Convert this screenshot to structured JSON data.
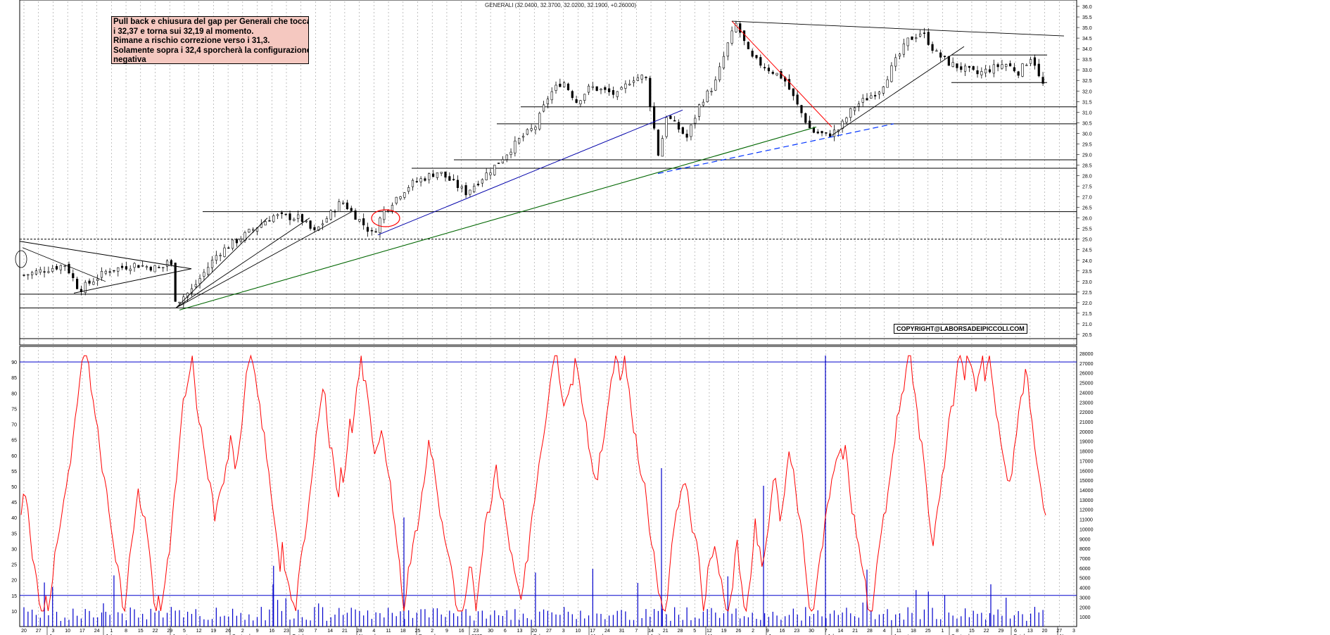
{
  "header_text": "GENERALI (32.0400, 32.3700, 32.0200, 32.1900, +0.26000)",
  "note_lines": [
    "Pull back e chiusura del gap per Generali che tocca",
    "i 32,37 e torna sui 32,19 al momento.",
    "Rimane a rischio correzione verso i 31,3.",
    "Solamente sopra i 32,4 sporcherà la configurazione",
    "negativa"
  ],
  "copyright": "COPYRIGHT@LABORSADEIPICCOLI.COM",
  "colors": {
    "candle": "#000000",
    "rsi": "#ff0000",
    "volume": "#0000cc",
    "blue_line": "#0000aa",
    "green_line": "#006600",
    "red_line": "#ff0000",
    "dashed_blue": "#0033ff"
  },
  "chart_data": [
    {
      "type": "candlestick",
      "title": "GENERALI (32.0400, 32.3700, 32.0200, 32.1900, +0.26000)",
      "ylim": [
        20.0,
        36.3
      ],
      "y_ticks": [
        "20.5",
        "21.0",
        "21.5",
        "22.0",
        "22.5",
        "23.0",
        "23.5",
        "24.0",
        "24.5",
        "25.0",
        "25.5",
        "26.0",
        "26.5",
        "27.0",
        "27.5",
        "28.0",
        "28.5",
        "29.0",
        "29.5",
        "30.0",
        "30.5",
        "31.0",
        "31.5",
        "32.0",
        "32.5",
        "33.0",
        "33.5",
        "34.0",
        "34.5",
        "35.0",
        "35.5",
        "36.0"
      ],
      "last": {
        "open": 32.04,
        "high": 32.37,
        "low": 32.02,
        "close": 32.19,
        "change": 0.26
      },
      "horizontal_levels": [
        33.7,
        32.4,
        31.25,
        30.45,
        28.75,
        28.35,
        26.3,
        25.0,
        22.4,
        21.75,
        20.3
      ],
      "price_path": [
        [
          "2024-05-20",
          23.3
        ],
        [
          "2024-06-10",
          23.8
        ],
        [
          "2024-06-17",
          22.6
        ],
        [
          "2024-07-01",
          23.5
        ],
        [
          "2024-07-15",
          23.8
        ],
        [
          "2024-07-29",
          23.6
        ],
        [
          "2024-08-02",
          24.2
        ],
        [
          "2024-08-05",
          22.0
        ],
        [
          "2024-08-13",
          22.6
        ],
        [
          "2024-08-26",
          24.3
        ],
        [
          "2024-09-09",
          25.2
        ],
        [
          "2024-09-23",
          26.1
        ],
        [
          "2024-10-07",
          26.0
        ],
        [
          "2024-10-14",
          25.3
        ],
        [
          "2024-10-28",
          26.8
        ],
        [
          "2024-11-04",
          26.1
        ],
        [
          "2024-11-13",
          25.2
        ],
        [
          "2024-11-18",
          26.3
        ],
        [
          "2024-11-25",
          27.0
        ],
        [
          "2024-12-02",
          27.6
        ],
        [
          "2024-12-16",
          28.2
        ],
        [
          "2024-12-30",
          27.2
        ],
        [
          "2025-01-13",
          28.4
        ],
        [
          "2025-01-27",
          29.8
        ],
        [
          "2025-02-03",
          30.3
        ],
        [
          "2025-02-10",
          31.8
        ],
        [
          "2025-02-17",
          32.5
        ],
        [
          "2025-02-24",
          31.5
        ],
        [
          "2025-03-03",
          32.2
        ],
        [
          "2025-03-17",
          31.8
        ],
        [
          "2025-03-24",
          32.6
        ],
        [
          "2025-03-31",
          32.7
        ],
        [
          "2025-04-07",
          28.7
        ],
        [
          "2025-04-10",
          30.9
        ],
        [
          "2025-04-21",
          29.8
        ],
        [
          "2025-04-28",
          31.5
        ],
        [
          "2025-05-05",
          32.3
        ],
        [
          "2025-05-12",
          34.3
        ],
        [
          "2025-05-16",
          35.2
        ],
        [
          "2025-05-23",
          33.6
        ],
        [
          "2025-06-02",
          33.0
        ],
        [
          "2025-06-09",
          32.6
        ],
        [
          "2025-06-16",
          31.3
        ],
        [
          "2025-06-23",
          30.1
        ],
        [
          "2025-07-01",
          29.9
        ],
        [
          "2025-07-07",
          30.2
        ],
        [
          "2025-07-14",
          31.2
        ],
        [
          "2025-07-28",
          32.1
        ],
        [
          "2025-08-04",
          33.3
        ],
        [
          "2025-08-11",
          34.4
        ],
        [
          "2025-08-18",
          34.8
        ],
        [
          "2025-08-25",
          33.8
        ],
        [
          "2025-09-01",
          33.3
        ],
        [
          "2025-09-15",
          32.8
        ],
        [
          "2025-09-29",
          33.3
        ],
        [
          "2025-10-06",
          32.9
        ],
        [
          "2025-10-13",
          33.7
        ],
        [
          "2025-10-17",
          32.4
        ],
        [
          "2025-10-20",
          32.19
        ]
      ]
    },
    {
      "type": "line",
      "name": "oscillator",
      "ylim": [
        5,
        95
      ],
      "y_ticks": [
        "10",
        "15",
        "20",
        "25",
        "30",
        "35",
        "40",
        "45",
        "50",
        "55",
        "60",
        "65",
        "70",
        "75",
        "80",
        "85",
        "90"
      ],
      "reference_lines": [
        90,
        15
      ]
    },
    {
      "type": "bar",
      "name": "volume",
      "y_ticks": [
        "1000",
        "2000",
        "3000",
        "4000",
        "5000",
        "6000",
        "7000",
        "8000",
        "9000",
        "10000",
        "11000",
        "12000",
        "13000",
        "14000",
        "15000",
        "16000",
        "17000",
        "18000",
        "19000",
        "20000",
        "21000",
        "22000",
        "23000",
        "24000",
        "25000",
        "26000",
        "27000",
        "28000"
      ],
      "x_day_ticks": [
        "20",
        "27",
        "3",
        "10",
        "17",
        "24",
        "1",
        "8",
        "15",
        "22",
        "29",
        "5",
        "12",
        "19",
        "26",
        "2",
        "9",
        "16",
        "23",
        "30",
        "7",
        "14",
        "21",
        "28",
        "4",
        "11",
        "18",
        "25",
        "2",
        "9",
        "16",
        "23",
        "30",
        "6",
        "13",
        "20",
        "27",
        "3",
        "10",
        "17",
        "24",
        "31",
        "7",
        "14",
        "21",
        "28",
        "5",
        "12",
        "19",
        "26",
        "2",
        "9",
        "16",
        "23",
        "30",
        "7",
        "14",
        "21",
        "28",
        "4",
        "11",
        "18",
        "25",
        "1",
        "8",
        "15",
        "22",
        "29",
        "6",
        "13",
        "20",
        "27",
        "3"
      ],
      "x_month_labels": [
        "June",
        "July",
        "August",
        "September",
        "October",
        "November",
        "December",
        "2025",
        "February",
        "March",
        "April",
        "May",
        "June",
        "July",
        "August",
        "September",
        "October",
        "N"
      ]
    }
  ]
}
